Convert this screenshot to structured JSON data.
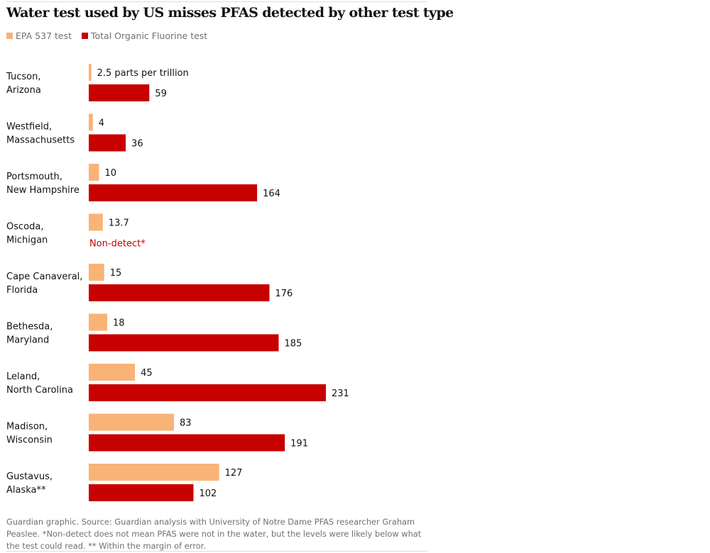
{
  "header": {
    "title": "Water test used by US misses PFAS detected by other test type"
  },
  "legend": [
    {
      "label": "EPA 537 test",
      "color": "#f9b376"
    },
    {
      "label": "Total Organic Fluorine test",
      "color": "#c70000"
    }
  ],
  "chart_data": {
    "type": "bar",
    "orientation": "horizontal",
    "title": "Water test used by US misses PFAS detected by other test type",
    "unit": "parts per trillion",
    "categories": [
      [
        "Tucson,",
        "Arizona"
      ],
      [
        "Westfield,",
        "Massachusetts"
      ],
      [
        "Portsmouth,",
        "New Hampshire"
      ],
      [
        "Oscoda,",
        "Michigan"
      ],
      [
        "Cape Canaveral,",
        "Florida"
      ],
      [
        "Bethesda,",
        "Maryland"
      ],
      [
        "Leland,",
        "North Carolina"
      ],
      [
        "Madison,",
        "Wisconsin"
      ],
      [
        "Gustavus,",
        "Alaska**"
      ]
    ],
    "series": [
      {
        "name": "EPA 537 test",
        "color": "#f9b376",
        "values": [
          2.5,
          4,
          10,
          13.7,
          15,
          18,
          45,
          83,
          127
        ],
        "labels": [
          "2.5 parts per trillion",
          "4",
          "10",
          "13.7",
          "15",
          "18",
          "45",
          "83",
          "127"
        ]
      },
      {
        "name": "Total Organic Fluorine test",
        "color": "#c70000",
        "values": [
          59,
          36,
          164,
          null,
          176,
          185,
          231,
          191,
          102
        ],
        "labels": [
          "59",
          "36",
          "164",
          "Non-detect*",
          "176",
          "185",
          "231",
          "191",
          "102"
        ]
      }
    ],
    "xlim": [
      0,
      231
    ],
    "grid": false,
    "legend_position": "top-left",
    "xlabel": "",
    "ylabel": ""
  },
  "footer": {
    "source": "Guardian graphic. Source: Guardian analysis with University of Notre Dame PFAS researcher Graham Peaslee. *Non-detect does not mean PFAS were not in the water, but the levels were likely below what the test could read. ** Within the margin of error."
  }
}
